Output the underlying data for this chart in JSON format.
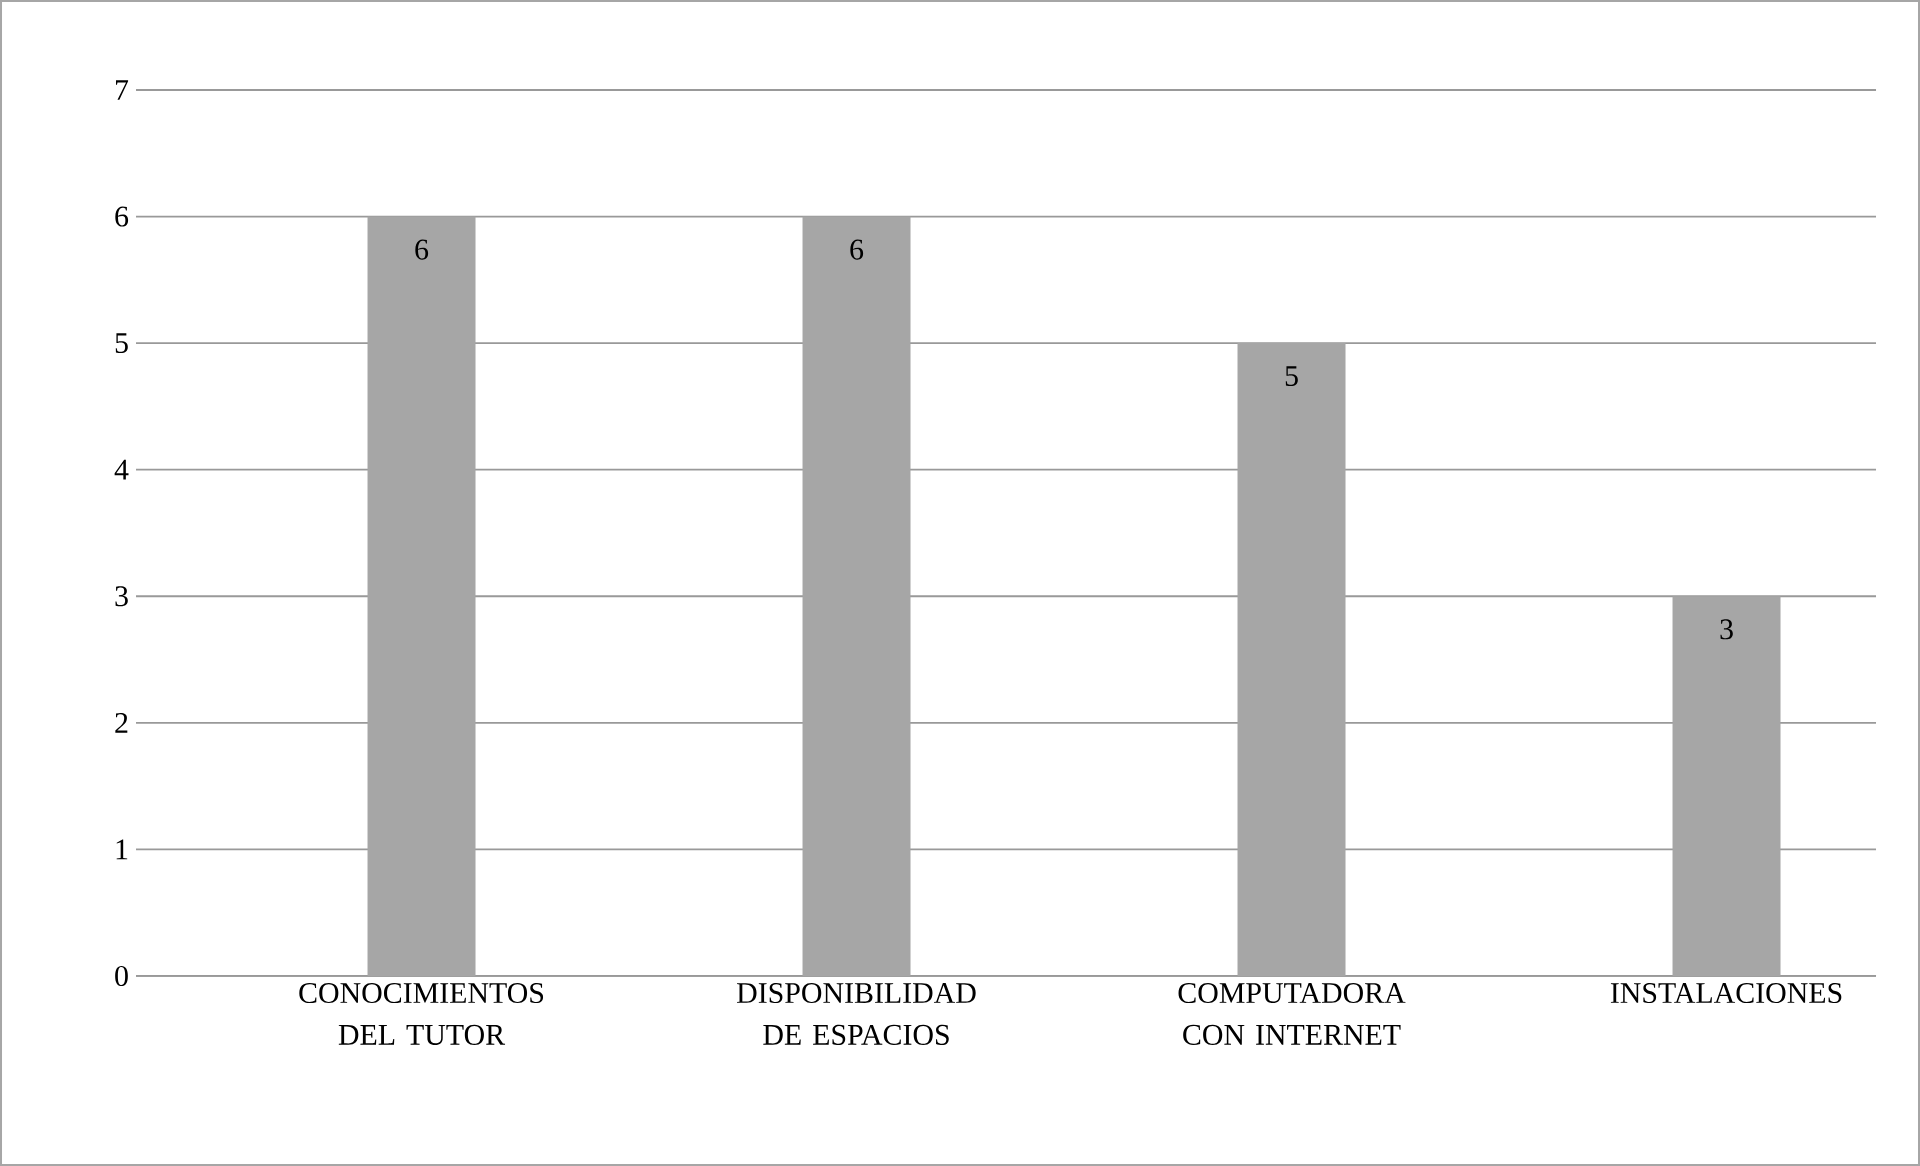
{
  "chart_data": {
    "type": "bar",
    "categories": [
      "CONOCIMIENTOS DEL TUTOR",
      "DISPONIBILIDAD DE ESPACIOS",
      "COMPUTADORA CON INTERNET",
      "INSTALACIONES"
    ],
    "values": [
      6,
      6,
      5,
      3
    ],
    "color": "#a6a6a6",
    "ylim": [
      0,
      7
    ],
    "yticks": [
      0,
      1,
      2,
      3,
      4,
      5,
      6,
      7
    ],
    "grid": "y",
    "data_labels": true
  }
}
